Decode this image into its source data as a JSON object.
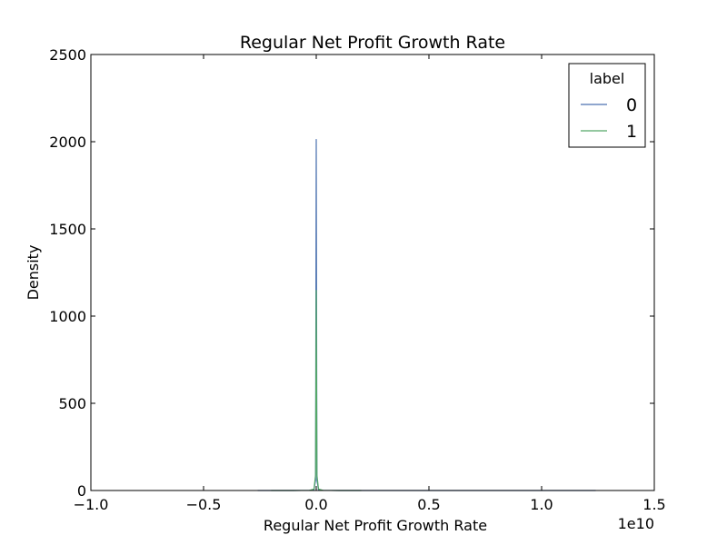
{
  "chart_data": {
    "type": "line",
    "title": "Regular Net Profit Growth Rate",
    "xlabel": "Regular Net Profit Growth Rate",
    "ylabel": "Density",
    "x_offset_label": "1e10",
    "xlim": [
      -10000000000.0,
      15000000000.0
    ],
    "ylim": [
      0,
      2500
    ],
    "xticks": [
      -10000000000.0,
      -5000000000.0,
      0,
      5000000000.0,
      10000000000.0,
      15000000000.0
    ],
    "xtick_labels": [
      "−1.0",
      "−0.5",
      "0.0",
      "0.5",
      "1.0",
      "1.5"
    ],
    "yticks": [
      0,
      500,
      1000,
      1500,
      2000,
      2500
    ],
    "ytick_labels": [
      "0",
      "500",
      "1000",
      "1500",
      "2000",
      "2500"
    ],
    "grid": false,
    "legend": {
      "title": "label",
      "placement": "top-right",
      "entries": [
        "0",
        "1"
      ]
    },
    "series": [
      {
        "name": "0",
        "color": "#4c72b0",
        "x": [
          -2600000000.0,
          -1000000000.0,
          -300000000.0,
          -100000000.0,
          -30000000.0,
          0,
          30000000.0,
          100000000.0,
          300000000.0,
          1000000000.0,
          4000000000.0,
          12400000000.0
        ],
        "y": [
          0,
          0,
          1,
          5,
          60,
          2015,
          60,
          5,
          1,
          0,
          0,
          0
        ]
      },
      {
        "name": "1",
        "color": "#55a868",
        "x": [
          -2000000000.0,
          -1000000000.0,
          -300000000.0,
          -100000000.0,
          -30000000.0,
          0,
          30000000.0,
          100000000.0,
          300000000.0,
          1000000000.0,
          2000000000.0
        ],
        "y": [
          0,
          0,
          1,
          8,
          90,
          1150,
          90,
          8,
          1,
          0,
          0
        ]
      }
    ]
  }
}
